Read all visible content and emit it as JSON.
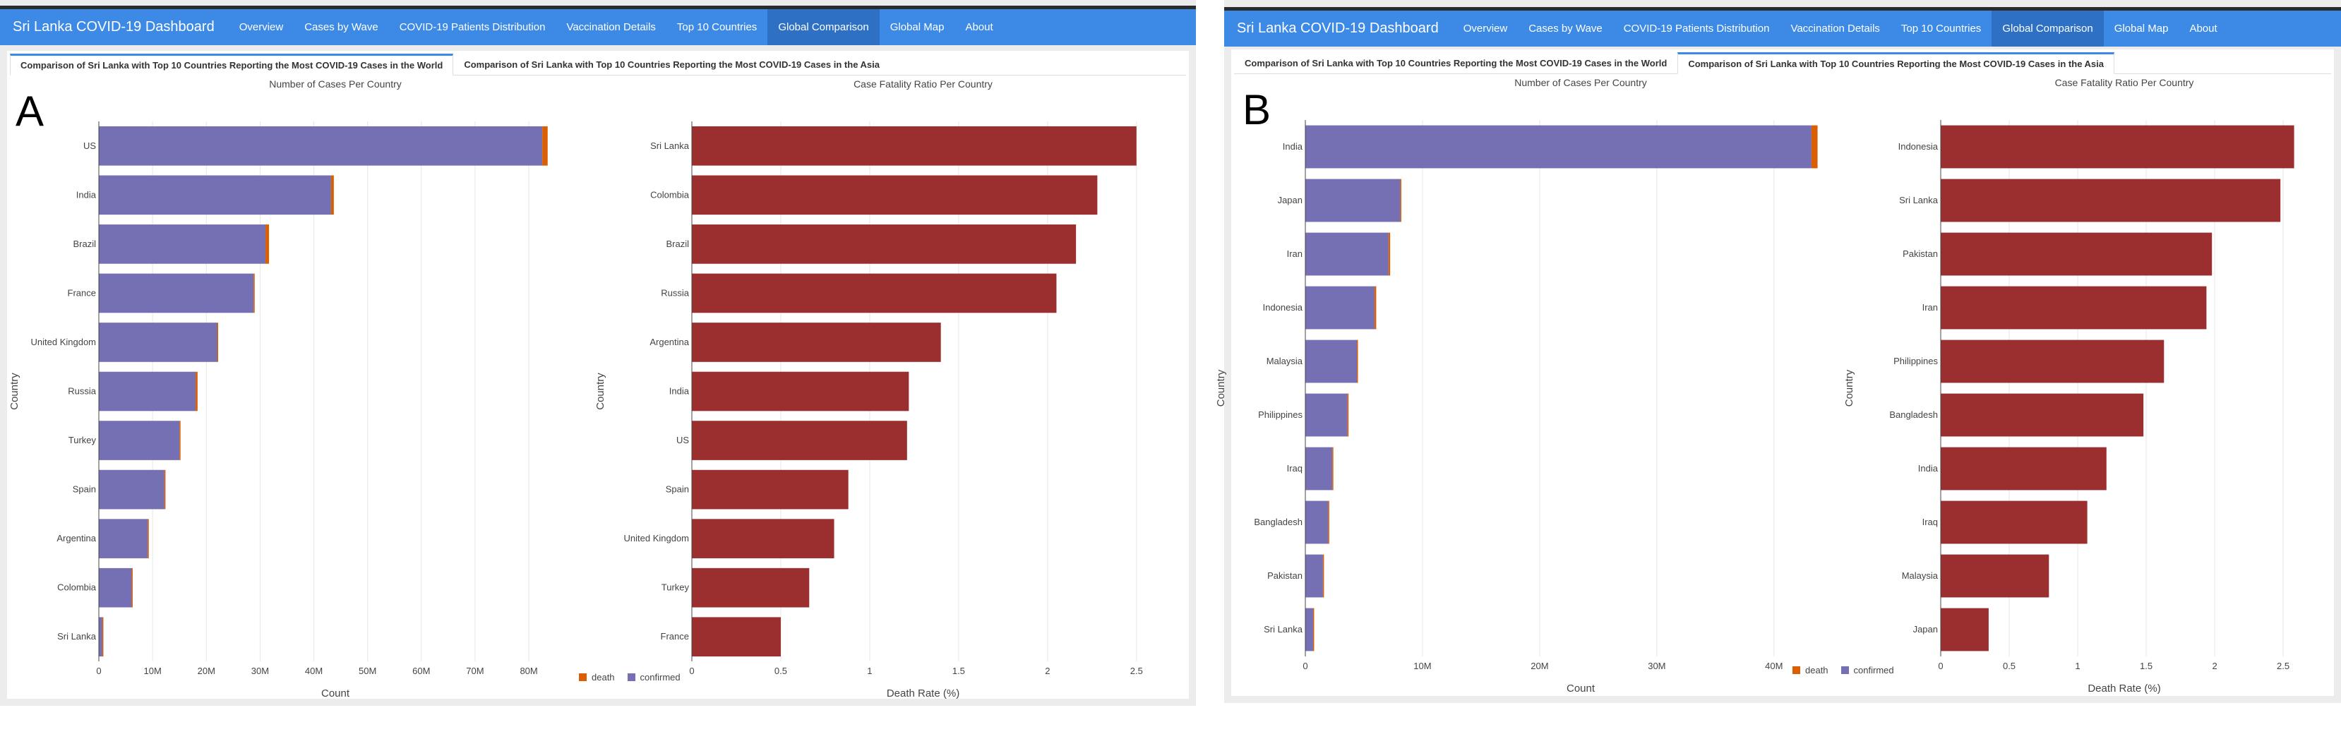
{
  "colors": {
    "navbar": "#3c8ae6",
    "confirmed": "#7570b3",
    "death": "#d95f02",
    "cfr": "#9b2e2e"
  },
  "panels": [
    {
      "letter": "A",
      "app_title": "Sri Lanka COVID-19 Dashboard",
      "nav": [
        "Overview",
        "Cases by Wave",
        "COVID-19 Patients Distribution",
        "Vaccination Details",
        "Top 10 Countries",
        "Global Comparison",
        "Global Map",
        "About"
      ],
      "active_nav": 5,
      "tabs": [
        "Comparison of Sri Lanka with Top 10 Countries Reporting the Most COVID-19 Cases in the World",
        "Comparison of Sri Lanka with Top 10 Countries Reporting the Most COVID-19 Cases in the Asia"
      ],
      "active_tab": 0,
      "legend": [
        "death",
        "confirmed"
      ],
      "cases_chart": {
        "type": "bar",
        "title": "Number of Cases Per Country",
        "xlabel": "Count",
        "ylabel": "Country",
        "categories": [
          "US",
          "India",
          "Brazil",
          "France",
          "United Kingdom",
          "Russia",
          "Turkey",
          "Spain",
          "Argentina",
          "Colombia",
          "Sri Lanka"
        ],
        "series": [
          {
            "name": "confirmed",
            "values": [
              82.5,
              43.2,
              31.0,
              28.8,
              22.0,
              18.0,
              15.0,
              12.2,
              9.1,
              6.1,
              0.65
            ]
          },
          {
            "name": "death",
            "values": [
              1.0,
              0.52,
              0.66,
              0.15,
              0.18,
              0.37,
              0.1,
              0.1,
              0.13,
              0.14,
              0.016
            ]
          }
        ],
        "xlim": [
          0,
          88
        ],
        "x_ticks": [
          0,
          10,
          20,
          30,
          40,
          50,
          60,
          70,
          80
        ],
        "x_tick_labels": [
          "0",
          "10M",
          "20M",
          "30M",
          "40M",
          "50M",
          "60M",
          "70M",
          "80M"
        ]
      },
      "cfr_chart": {
        "type": "bar",
        "title": "Case Fatality Ratio Per Country",
        "xlabel": "Death Rate (%)",
        "ylabel": "Country",
        "categories": [
          "Sri Lanka",
          "Colombia",
          "Brazil",
          "Russia",
          "Argentina",
          "India",
          "US",
          "Spain",
          "United Kingdom",
          "Turkey",
          "France"
        ],
        "values": [
          2.5,
          2.28,
          2.16,
          2.05,
          1.4,
          1.22,
          1.21,
          0.88,
          0.8,
          0.66,
          0.5
        ],
        "xlim": [
          0,
          2.6
        ],
        "x_ticks": [
          0,
          0.5,
          1,
          1.5,
          2,
          2.5
        ],
        "x_tick_labels": [
          "0",
          "0.5",
          "1",
          "1.5",
          "2",
          "2.5"
        ]
      }
    },
    {
      "letter": "B",
      "app_title": "Sri Lanka COVID-19 Dashboard",
      "nav": [
        "Overview",
        "Cases by Wave",
        "COVID-19 Patients Distribution",
        "Vaccination Details",
        "Top 10 Countries",
        "Global Comparison",
        "Global Map",
        "About"
      ],
      "active_nav": 5,
      "tabs": [
        "Comparison of Sri Lanka with Top 10 Countries Reporting the Most COVID-19 Cases in the World",
        "Comparison of Sri Lanka with Top 10 Countries Reporting the Most COVID-19 Cases in the Asia"
      ],
      "active_tab": 1,
      "legend": [
        "death",
        "confirmed"
      ],
      "cases_chart": {
        "type": "bar",
        "title": "Number of Cases Per Country",
        "xlabel": "Count",
        "ylabel": "Country",
        "categories": [
          "India",
          "Japan",
          "Iran",
          "Indonesia",
          "Malaysia",
          "Philippines",
          "Iraq",
          "Bangladesh",
          "Pakistan",
          "Sri Lanka"
        ],
        "series": [
          {
            "name": "confirmed",
            "values": [
              43.2,
              8.1,
              7.1,
              5.9,
              4.4,
              3.6,
              2.3,
              1.95,
              1.5,
              0.66
            ]
          },
          {
            "name": "death",
            "values": [
              0.52,
              0.03,
              0.14,
              0.15,
              0.035,
              0.06,
              0.025,
              0.029,
              0.03,
              0.017
            ]
          }
        ],
        "xlim": [
          0,
          47
        ],
        "x_ticks": [
          0,
          10,
          20,
          30,
          40
        ],
        "x_tick_labels": [
          "0",
          "10M",
          "20M",
          "30M",
          "40M"
        ]
      },
      "cfr_chart": {
        "type": "bar",
        "title": "Case Fatality Ratio Per Country",
        "xlabel": "Death Rate (%)",
        "ylabel": "Country",
        "categories": [
          "Indonesia",
          "Sri Lanka",
          "Pakistan",
          "Iran",
          "Philippines",
          "Bangladesh",
          "India",
          "Iraq",
          "Malaysia",
          "Japan"
        ],
        "values": [
          2.58,
          2.48,
          1.98,
          1.94,
          1.63,
          1.48,
          1.21,
          1.07,
          0.79,
          0.35
        ],
        "xlim": [
          0,
          2.68
        ],
        "x_ticks": [
          0,
          0.5,
          1,
          1.5,
          2,
          2.5
        ],
        "x_tick_labels": [
          "0",
          "0.5",
          "1",
          "1.5",
          "2",
          "2.5"
        ]
      }
    }
  ]
}
